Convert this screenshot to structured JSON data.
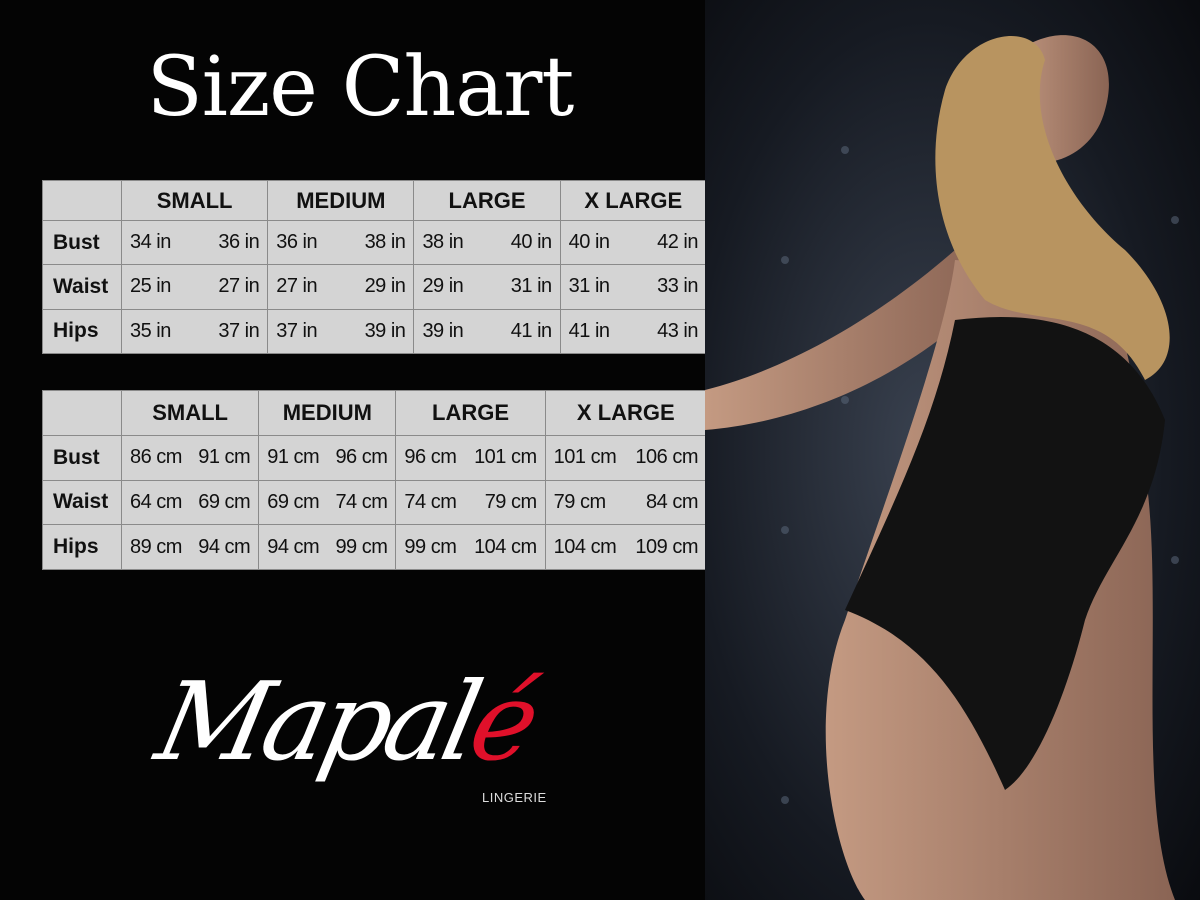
{
  "title": "Size Chart",
  "sizes": [
    "SMALL",
    "MEDIUM",
    "LARGE",
    "X LARGE"
  ],
  "inches": {
    "rows": [
      {
        "label": "Bust",
        "values": [
          "34 in",
          "36 in",
          "36 in",
          "38 in",
          "38 in",
          "40 in",
          "40 in",
          "42 in"
        ]
      },
      {
        "label": "Waist",
        "values": [
          "25 in",
          "27 in",
          "27 in",
          "29 in",
          "29 in",
          "31 in",
          "31 in",
          "33 in"
        ]
      },
      {
        "label": "Hips",
        "values": [
          "35 in",
          "37 in",
          "37 in",
          "39 in",
          "39 in",
          "41 in",
          "41 in",
          "43 in"
        ]
      }
    ]
  },
  "cm": {
    "rows": [
      {
        "label": "Bust",
        "values": [
          "86 cm",
          "91 cm",
          "91 cm",
          "96 cm",
          "96 cm",
          "101 cm",
          "101 cm",
          "106 cm"
        ]
      },
      {
        "label": "Waist",
        "values": [
          "64 cm",
          "69 cm",
          "69 cm",
          "74 cm",
          "74 cm",
          "79  cm",
          "79 cm",
          "84 cm"
        ]
      },
      {
        "label": "Hips",
        "values": [
          "89 cm",
          "94 cm",
          "94 cm",
          "99 cm",
          "99 cm",
          "104 cm",
          "104 cm",
          "109 cm"
        ]
      }
    ]
  },
  "brand": {
    "name_main": "Mapal",
    "name_accent": "é",
    "subtitle": "LINGERIE",
    "accent_color": "#e0102a"
  }
}
